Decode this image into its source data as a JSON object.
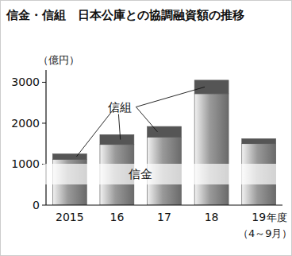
{
  "chart_data": {
    "type": "bar",
    "title": "信金・信組　日本公庫との協調融資額の推移",
    "y_label": "（億円）",
    "x_label": "年度",
    "annotations": [
      "（4～9月）"
    ],
    "categories": [
      "2015",
      "16",
      "17",
      "18",
      "19"
    ],
    "series": [
      {
        "name": "信金",
        "color": "#9a9a9a",
        "values": [
          1120,
          1480,
          1660,
          2720,
          1500
        ]
      },
      {
        "name": "信組",
        "color": "#555555",
        "values": [
          130,
          240,
          260,
          330,
          120
        ]
      }
    ],
    "stacked": true,
    "ylim": [
      0,
      3300
    ],
    "yticks": [
      0,
      1000,
      2000,
      3000
    ],
    "grid": false
  }
}
